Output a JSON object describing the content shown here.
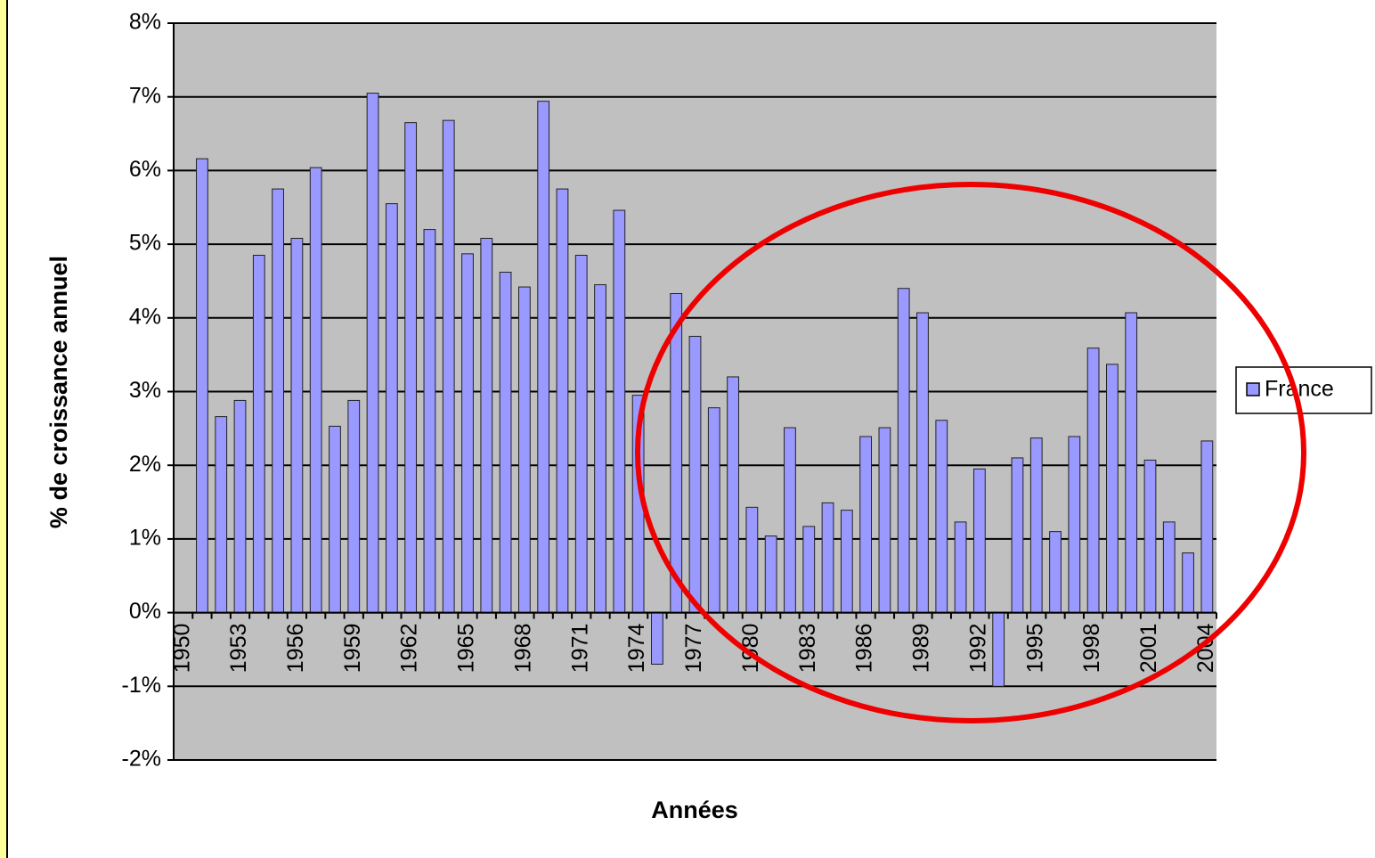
{
  "chart_data": {
    "type": "bar",
    "x_label": "Années",
    "y_label": "% de croissance annuel",
    "categories": [
      "1950",
      null,
      null,
      "1953",
      null,
      null,
      "1956",
      null,
      null,
      "1959",
      null,
      null,
      "1962",
      null,
      null,
      "1965",
      null,
      null,
      "1968",
      null,
      null,
      "1971",
      null,
      null,
      "1974",
      null,
      null,
      "1977",
      null,
      null,
      "1980",
      null,
      null,
      "1983",
      null,
      null,
      "1986",
      null,
      null,
      "1989",
      null,
      null,
      "1992",
      null,
      null,
      "1995",
      null,
      null,
      "1998",
      null,
      null,
      "2001",
      null,
      null,
      "2004"
    ],
    "series": [
      {
        "name": "France",
        "color": "#9999ff",
        "values": [
          null,
          6.16,
          2.66,
          2.88,
          4.85,
          5.75,
          5.08,
          6.04,
          2.53,
          2.88,
          7.05,
          5.55,
          6.65,
          5.2,
          6.68,
          4.87,
          5.08,
          4.62,
          4.42,
          6.94,
          5.75,
          4.85,
          4.45,
          5.46,
          2.95,
          -0.7,
          4.33,
          3.75,
          2.78,
          3.2,
          1.43,
          1.04,
          2.51,
          1.17,
          1.49,
          1.39,
          2.39,
          2.51,
          4.4,
          4.07,
          2.61,
          1.23,
          1.95,
          -1.0,
          2.1,
          2.37,
          1.1,
          2.39,
          3.59,
          3.37,
          4.07,
          2.07,
          1.23,
          0.81,
          2.33
        ]
      }
    ],
    "ylim": [
      -2,
      8
    ],
    "yticks": [
      {
        "value": -2,
        "label": "-2%"
      },
      {
        "value": -1,
        "label": "-1%"
      },
      {
        "value": 0,
        "label": "0%"
      },
      {
        "value": 1,
        "label": "1%"
      },
      {
        "value": 2,
        "label": "2%"
      },
      {
        "value": 3,
        "label": "3%"
      },
      {
        "value": 4,
        "label": "4%"
      },
      {
        "value": 5,
        "label": "5%"
      },
      {
        "value": 6,
        "label": "6%"
      },
      {
        "value": 7,
        "label": "7%"
      },
      {
        "value": 8,
        "label": "8%"
      }
    ],
    "grid": true,
    "legend": "right"
  }
}
